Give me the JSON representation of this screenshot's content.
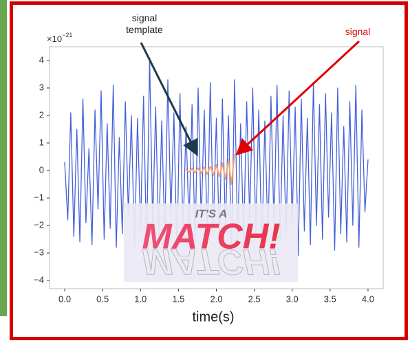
{
  "chart_data": {
    "type": "line",
    "offset_label": {
      "base": "×10",
      "exponent": "−21"
    },
    "x_label": "time(s)",
    "annotations": [
      {
        "text": "signal template",
        "color": "#1f1f1f"
      },
      {
        "text": "signal",
        "color": "#d40000"
      }
    ],
    "overlay": {
      "top": "IT'S A",
      "main": "MATCH!"
    },
    "xlim": [
      -0.2,
      4.2
    ],
    "ylim": [
      -4.3,
      4.5
    ],
    "xticks": [
      {
        "value": 0,
        "label": "0.0"
      },
      0.5,
      {
        "value": 1,
        "label": "1.0"
      },
      1.5,
      {
        "value": 2,
        "label": "2.0"
      },
      2.5,
      {
        "value": 3,
        "label": "3.0"
      },
      3.5,
      {
        "value": 4,
        "label": "4.0"
      }
    ],
    "yticks": [
      {
        "value": -4,
        "label": "−4"
      },
      {
        "value": -3,
        "label": "−3"
      },
      {
        "value": -2,
        "label": "−2"
      },
      {
        "value": -1,
        "label": "−1"
      },
      0,
      1,
      2,
      3,
      4
    ],
    "series": [
      {
        "name": "signal",
        "color": "#4561d8",
        "x": [
          0,
          0.04,
          0.08,
          0.12,
          0.16,
          0.2,
          0.24,
          0.28,
          0.32,
          0.36,
          0.4,
          0.44,
          0.48,
          0.52,
          0.56,
          0.6,
          0.64,
          0.68,
          0.72,
          0.76,
          0.8,
          0.84,
          0.88,
          0.92,
          0.96,
          1,
          1.04,
          1.08,
          1.12,
          1.16,
          1.2,
          1.24,
          1.28,
          1.32,
          1.36,
          1.4,
          1.44,
          1.48,
          1.52,
          1.56,
          1.6,
          1.64,
          1.68,
          1.72,
          1.76,
          1.8,
          1.84,
          1.88,
          1.92,
          1.96,
          2,
          2.04,
          2.08,
          2.12,
          2.16,
          2.2,
          2.24,
          2.28,
          2.32,
          2.36,
          2.4,
          2.44,
          2.48,
          2.52,
          2.56,
          2.6,
          2.64,
          2.68,
          2.72,
          2.76,
          2.8,
          2.84,
          2.88,
          2.92,
          2.96,
          3,
          3.04,
          3.08,
          3.12,
          3.16,
          3.2,
          3.24,
          3.28,
          3.32,
          3.36,
          3.4,
          3.44,
          3.48,
          3.52,
          3.56,
          3.6,
          3.64,
          3.68,
          3.72,
          3.76,
          3.8,
          3.84,
          3.88,
          3.92,
          3.96,
          4
        ],
        "values": [
          0.3,
          -1.8,
          2.1,
          -2.4,
          1.5,
          -2.6,
          2.6,
          -1.9,
          0.8,
          -2.7,
          2.2,
          -1.4,
          2.9,
          -2.5,
          1.7,
          -2.1,
          3.1,
          -2.8,
          1.2,
          -2.3,
          2.5,
          -1.6,
          2.0,
          -2.9,
          1.9,
          -2.2,
          2.7,
          -3.0,
          4.1,
          -2.0,
          2.3,
          -2.6,
          1.8,
          -2.4,
          3.3,
          -1.7,
          2.1,
          -3.2,
          2.8,
          -2.3,
          1.6,
          -2.0,
          2.4,
          -2.8,
          3.0,
          -1.9,
          2.2,
          -2.5,
          3.2,
          -2.1,
          1.9,
          -2.7,
          2.6,
          -2.2,
          2.0,
          -3.0,
          3.3,
          -2.4,
          1.7,
          -2.6,
          2.5,
          -1.8,
          3.0,
          -2.3,
          2.2,
          -2.9,
          1.8,
          -2.5,
          2.7,
          -2.1,
          3.1,
          -2.6,
          2.0,
          -2.4,
          2.9,
          -1.9,
          2.3,
          -3.1,
          2.6,
          -2.2,
          1.9,
          -2.7,
          3.2,
          -2.0,
          2.4,
          -2.5,
          2.8,
          -1.7,
          2.1,
          -2.9,
          3.0,
          -2.3,
          1.6,
          -2.6,
          2.5,
          -2.0,
          3.1,
          -2.8,
          2.2,
          -1.5,
          0.4
        ]
      },
      {
        "name": "signal template",
        "color": "#f2a272",
        "x": [
          1.6,
          1.64,
          1.68,
          1.72,
          1.76,
          1.8,
          1.84,
          1.88,
          1.92,
          1.96,
          2,
          2.04,
          2.08,
          2.12,
          2.16,
          2.2,
          2.24
        ],
        "values": [
          0.05,
          -0.06,
          0.07,
          -0.08,
          0.09,
          -0.1,
          0.12,
          -0.13,
          0.15,
          -0.17,
          0.2,
          -0.23,
          0.27,
          -0.32,
          0.4,
          -0.5,
          0.6
        ]
      }
    ]
  }
}
